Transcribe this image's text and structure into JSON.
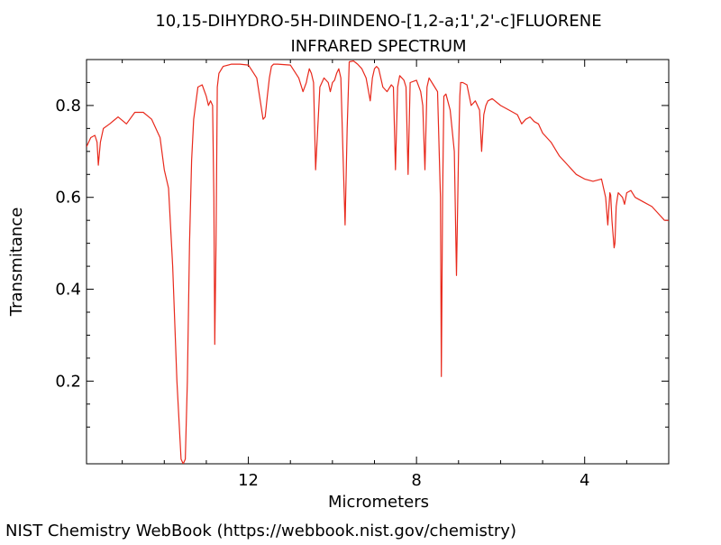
{
  "chart_data": {
    "type": "line",
    "title": "10,15-DIHYDRO-5H-DIINDENO-[1,2-a;1',2'-c]FLUORENE",
    "subtitle": "INFRARED SPECTRUM",
    "xlabel": "Micrometers",
    "ylabel": "Transmitance",
    "xlim": [
      15.85,
      2.0
    ],
    "ylim": [
      0.02,
      0.9
    ],
    "x_reversed": true,
    "x_ticks": [
      12,
      8,
      4
    ],
    "x_tick_labels": [
      "12",
      "8",
      "4"
    ],
    "y_ticks": [
      0.2,
      0.4,
      0.6,
      0.8
    ],
    "y_tick_labels": [
      "0.2",
      "0.4",
      "0.6",
      "0.8"
    ],
    "grid": false,
    "line_color": "#e8291c",
    "series": [
      {
        "x": [
          15.85,
          15.75,
          15.65,
          15.6,
          15.57,
          15.52,
          15.45,
          15.3,
          15.1,
          14.9,
          14.7,
          14.5,
          14.3,
          14.1,
          14.0,
          13.9,
          13.8,
          13.7,
          13.6,
          13.55,
          13.5,
          13.45,
          13.4,
          13.35,
          13.3,
          13.2,
          13.1,
          13.0,
          12.95,
          12.9,
          12.85,
          12.82,
          12.8,
          12.77,
          12.74,
          12.7,
          12.6,
          12.4,
          12.2,
          12.0,
          11.8,
          11.65,
          11.6,
          11.55,
          11.5,
          11.45,
          11.4,
          11.3,
          11.0,
          10.8,
          10.7,
          10.62,
          10.6,
          10.55,
          10.5,
          10.45,
          10.4,
          10.3,
          10.2,
          10.1,
          10.05,
          10.0,
          9.95,
          9.9,
          9.85,
          9.8,
          9.75,
          9.7,
          9.65,
          9.6,
          9.5,
          9.4,
          9.3,
          9.2,
          9.1,
          9.05,
          9.0,
          8.95,
          8.9,
          8.8,
          8.7,
          8.6,
          8.55,
          8.5,
          8.45,
          8.4,
          8.3,
          8.25,
          8.2,
          8.15,
          8.0,
          7.9,
          7.85,
          7.8,
          7.75,
          7.7,
          7.6,
          7.5,
          7.43,
          7.41,
          7.38,
          7.35,
          7.3,
          7.2,
          7.1,
          7.05,
          7.0,
          6.97,
          6.95,
          6.9,
          6.8,
          6.7,
          6.6,
          6.5,
          6.45,
          6.4,
          6.35,
          6.3,
          6.2,
          6.0,
          5.8,
          5.6,
          5.5,
          5.4,
          5.3,
          5.2,
          5.1,
          5.0,
          4.8,
          4.6,
          4.4,
          4.2,
          4.0,
          3.8,
          3.6,
          3.5,
          3.45,
          3.4,
          3.38,
          3.35,
          3.3,
          3.28,
          3.25,
          3.22,
          3.2,
          3.1,
          3.05,
          3.0,
          2.9,
          2.8,
          2.6,
          2.4,
          2.2,
          2.1,
          2.0
        ],
        "y": [
          0.71,
          0.73,
          0.735,
          0.72,
          0.67,
          0.72,
          0.75,
          0.76,
          0.775,
          0.76,
          0.785,
          0.785,
          0.77,
          0.73,
          0.66,
          0.62,
          0.45,
          0.2,
          0.03,
          0.02,
          0.03,
          0.2,
          0.5,
          0.68,
          0.77,
          0.84,
          0.845,
          0.82,
          0.8,
          0.81,
          0.8,
          0.6,
          0.28,
          0.5,
          0.84,
          0.87,
          0.885,
          0.89,
          0.89,
          0.888,
          0.86,
          0.77,
          0.775,
          0.82,
          0.86,
          0.885,
          0.89,
          0.89,
          0.888,
          0.86,
          0.83,
          0.85,
          0.86,
          0.88,
          0.87,
          0.85,
          0.66,
          0.84,
          0.86,
          0.85,
          0.83,
          0.85,
          0.855,
          0.87,
          0.88,
          0.86,
          0.7,
          0.54,
          0.75,
          0.895,
          0.897,
          0.89,
          0.88,
          0.86,
          0.81,
          0.86,
          0.88,
          0.885,
          0.88,
          0.84,
          0.83,
          0.845,
          0.84,
          0.66,
          0.84,
          0.865,
          0.855,
          0.84,
          0.65,
          0.85,
          0.855,
          0.83,
          0.8,
          0.66,
          0.84,
          0.86,
          0.845,
          0.83,
          0.6,
          0.21,
          0.6,
          0.82,
          0.825,
          0.79,
          0.7,
          0.43,
          0.7,
          0.82,
          0.85,
          0.85,
          0.845,
          0.8,
          0.81,
          0.79,
          0.7,
          0.78,
          0.8,
          0.81,
          0.815,
          0.8,
          0.79,
          0.78,
          0.76,
          0.77,
          0.775,
          0.765,
          0.76,
          0.74,
          0.72,
          0.69,
          0.67,
          0.65,
          0.64,
          0.635,
          0.64,
          0.6,
          0.54,
          0.61,
          0.605,
          0.55,
          0.49,
          0.5,
          0.58,
          0.6,
          0.61,
          0.6,
          0.585,
          0.61,
          0.615,
          0.6,
          0.59,
          0.58,
          0.56,
          0.55,
          0.55
        ]
      }
    ]
  },
  "footer": {
    "credit": "NIST Chemistry WebBook (https://webbook.nist.gov/chemistry)"
  }
}
